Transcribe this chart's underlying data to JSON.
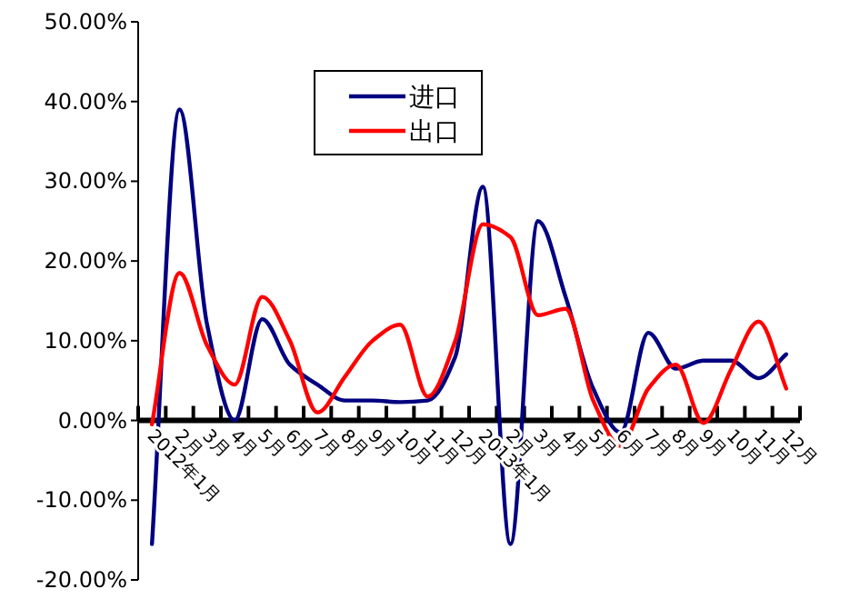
{
  "chart_data": {
    "type": "line",
    "categories": [
      "2012年1月",
      "2月",
      "3月",
      "4月",
      "5月",
      "6月",
      "7月",
      "8月",
      "9月",
      "10月",
      "11月",
      "12月",
      "2013年1月",
      "2月",
      "3月",
      "4月",
      "5月",
      "6月",
      "7月",
      "8月",
      "9月",
      "10月",
      "11月",
      "12月"
    ],
    "series": [
      {
        "name": "进口",
        "color": "#000080",
        "values": [
          -15.5,
          39,
          12,
          0,
          12.7,
          7,
          4.5,
          2.5,
          2.5,
          2.3,
          2.5,
          8,
          29.3,
          -15.5,
          25,
          15.5,
          4,
          -1.5,
          11,
          6.5,
          7.5,
          7.5,
          5.3,
          8.3
        ]
      },
      {
        "name": "出口",
        "color": "#ff0000",
        "values": [
          -0.5,
          18.5,
          9.4,
          4.5,
          15.5,
          10,
          1,
          5.5,
          10,
          12,
          3,
          10,
          24.6,
          23,
          13.2,
          14,
          2.5,
          -3.2,
          4,
          7,
          -0.3,
          6.4,
          12.4,
          4
        ]
      }
    ],
    "ylim": [
      -20,
      50
    ],
    "yticks": [
      {
        "value": -20,
        "label": "-20.00%"
      },
      {
        "value": -10,
        "label": "-10.00%"
      },
      {
        "value": 0,
        "label": "0.00%"
      },
      {
        "value": 10,
        "label": "10.00%"
      },
      {
        "value": 20,
        "label": "20.00%"
      },
      {
        "value": 30,
        "label": "30.00%"
      },
      {
        "value": 40,
        "label": "40.00%"
      },
      {
        "value": 50,
        "label": "50.00%"
      }
    ],
    "legend": "top",
    "grid": false,
    "marker": "none",
    "line_style": "solid"
  }
}
